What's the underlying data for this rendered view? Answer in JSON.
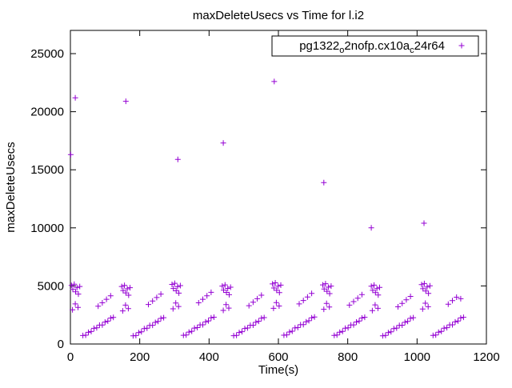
{
  "chart_data": {
    "type": "scatter",
    "title": "maxDeleteUsecs vs Time for l.i2",
    "xlabel": "Time(s)",
    "ylabel": "maxDeleteUsecs",
    "xlim": [
      0,
      1200
    ],
    "ylim": [
      0,
      27000
    ],
    "xticks": [
      0,
      200,
      400,
      600,
      800,
      1000,
      1200
    ],
    "yticks": [
      0,
      5000,
      10000,
      15000,
      20000,
      25000
    ],
    "grid": false,
    "marker": "plus",
    "marker_color": "#9400d3",
    "legend": {
      "label": "pg1322_o2nofp.cx10a_c24r64",
      "parts": [
        {
          "text": "pg1322"
        },
        {
          "text": "o",
          "sub": true
        },
        {
          "text": "2nofp.cx10a"
        },
        {
          "text": "c",
          "sub": true
        },
        {
          "text": "24r64"
        }
      ],
      "position": "top-right",
      "boxed": true
    },
    "series": [
      {
        "name": "pg1322_o2nofp.cx10a_c24r64",
        "points": [
          [
            1,
            16300
          ],
          [
            14,
            21200
          ],
          [
            160,
            20900
          ],
          [
            310,
            15900
          ],
          [
            441,
            17300
          ],
          [
            588,
            22600
          ],
          [
            731,
            13900
          ],
          [
            868,
            10000
          ],
          [
            1020,
            10400
          ],
          [
            3,
            5050
          ],
          [
            7,
            4700
          ],
          [
            11,
            5150
          ],
          [
            15,
            4500
          ],
          [
            19,
            4850
          ],
          [
            23,
            4300
          ],
          [
            27,
            4950
          ],
          [
            6,
            2950
          ],
          [
            14,
            3450
          ],
          [
            22,
            3150
          ],
          [
            36,
            730
          ],
          [
            44,
            758
          ],
          [
            52,
            1006
          ],
          [
            60,
            1074
          ],
          [
            68,
            1352
          ],
          [
            76,
            1390
          ],
          [
            84,
            1628
          ],
          [
            92,
            1636
          ],
          [
            100,
            1884
          ],
          [
            108,
            1972
          ],
          [
            116,
            2230
          ],
          [
            124,
            2288
          ],
          [
            80,
            3250
          ],
          [
            92,
            3550
          ],
          [
            104,
            3850
          ],
          [
            116,
            4150
          ],
          [
            148,
            4950
          ],
          [
            152,
            4600
          ],
          [
            156,
            5050
          ],
          [
            160,
            4400
          ],
          [
            164,
            4750
          ],
          [
            168,
            4200
          ],
          [
            172,
            4850
          ],
          [
            151,
            2850
          ],
          [
            159,
            3350
          ],
          [
            167,
            3050
          ],
          [
            181,
            705
          ],
          [
            189,
            733
          ],
          [
            197,
            981
          ],
          [
            205,
            1049
          ],
          [
            213,
            1327
          ],
          [
            221,
            1365
          ],
          [
            229,
            1603
          ],
          [
            237,
            1611
          ],
          [
            245,
            1859
          ],
          [
            253,
            1947
          ],
          [
            261,
            2205
          ],
          [
            269,
            2263
          ],
          [
            225,
            3400
          ],
          [
            237,
            3700
          ],
          [
            249,
            4000
          ],
          [
            261,
            4300
          ],
          [
            293,
            5130
          ],
          [
            297,
            4780
          ],
          [
            301,
            5230
          ],
          [
            305,
            4580
          ],
          [
            309,
            4930
          ],
          [
            313,
            4380
          ],
          [
            317,
            5030
          ],
          [
            296,
            3030
          ],
          [
            304,
            3530
          ],
          [
            312,
            3230
          ],
          [
            326,
            750
          ],
          [
            334,
            778
          ],
          [
            342,
            1026
          ],
          [
            350,
            1094
          ],
          [
            358,
            1372
          ],
          [
            366,
            1410
          ],
          [
            374,
            1648
          ],
          [
            382,
            1656
          ],
          [
            390,
            1904
          ],
          [
            398,
            1992
          ],
          [
            406,
            2250
          ],
          [
            414,
            2308
          ],
          [
            370,
            3550
          ],
          [
            382,
            3850
          ],
          [
            394,
            4150
          ],
          [
            406,
            4450
          ],
          [
            438,
            4990
          ],
          [
            442,
            4640
          ],
          [
            446,
            5090
          ],
          [
            450,
            4440
          ],
          [
            454,
            4790
          ],
          [
            458,
            4240
          ],
          [
            462,
            4890
          ],
          [
            441,
            2890
          ],
          [
            449,
            3390
          ],
          [
            457,
            3090
          ],
          [
            471,
            715
          ],
          [
            479,
            743
          ],
          [
            487,
            991
          ],
          [
            495,
            1059
          ],
          [
            503,
            1337
          ],
          [
            511,
            1375
          ],
          [
            519,
            1613
          ],
          [
            527,
            1621
          ],
          [
            535,
            1869
          ],
          [
            543,
            1957
          ],
          [
            551,
            2215
          ],
          [
            559,
            2273
          ],
          [
            515,
            3300
          ],
          [
            527,
            3600
          ],
          [
            539,
            3900
          ],
          [
            551,
            4200
          ],
          [
            583,
            5170
          ],
          [
            587,
            4820
          ],
          [
            591,
            5270
          ],
          [
            595,
            4620
          ],
          [
            599,
            4970
          ],
          [
            603,
            4420
          ],
          [
            607,
            5070
          ],
          [
            586,
            3070
          ],
          [
            594,
            3570
          ],
          [
            602,
            3270
          ],
          [
            616,
            760
          ],
          [
            624,
            788
          ],
          [
            632,
            1036
          ],
          [
            640,
            1104
          ],
          [
            648,
            1382
          ],
          [
            656,
            1420
          ],
          [
            664,
            1658
          ],
          [
            672,
            1666
          ],
          [
            680,
            1914
          ],
          [
            688,
            2002
          ],
          [
            696,
            2260
          ],
          [
            704,
            2318
          ],
          [
            660,
            3450
          ],
          [
            672,
            3750
          ],
          [
            684,
            4050
          ],
          [
            696,
            4350
          ],
          [
            728,
            5090
          ],
          [
            732,
            4740
          ],
          [
            736,
            5190
          ],
          [
            740,
            4540
          ],
          [
            744,
            4890
          ],
          [
            748,
            4340
          ],
          [
            752,
            4990
          ],
          [
            731,
            2990
          ],
          [
            739,
            3490
          ],
          [
            747,
            3190
          ],
          [
            761,
            740
          ],
          [
            769,
            768
          ],
          [
            777,
            1016
          ],
          [
            785,
            1084
          ],
          [
            793,
            1362
          ],
          [
            801,
            1400
          ],
          [
            809,
            1638
          ],
          [
            817,
            1646
          ],
          [
            825,
            1894
          ],
          [
            833,
            1982
          ],
          [
            841,
            2240
          ],
          [
            849,
            2298
          ],
          [
            805,
            3350
          ],
          [
            817,
            3650
          ],
          [
            829,
            3950
          ],
          [
            841,
            4250
          ],
          [
            868,
            4970
          ],
          [
            872,
            4620
          ],
          [
            876,
            5070
          ],
          [
            880,
            4420
          ],
          [
            884,
            4770
          ],
          [
            888,
            4220
          ],
          [
            892,
            4870
          ],
          [
            871,
            2870
          ],
          [
            879,
            3370
          ],
          [
            887,
            3070
          ],
          [
            901,
            710
          ],
          [
            909,
            738
          ],
          [
            917,
            986
          ],
          [
            925,
            1054
          ],
          [
            933,
            1332
          ],
          [
            941,
            1370
          ],
          [
            949,
            1608
          ],
          [
            957,
            1616
          ],
          [
            965,
            1864
          ],
          [
            973,
            1952
          ],
          [
            981,
            2210
          ],
          [
            989,
            2268
          ],
          [
            945,
            3200
          ],
          [
            957,
            3500
          ],
          [
            969,
            3800
          ],
          [
            981,
            4100
          ],
          [
            1013,
            5110
          ],
          [
            1017,
            4760
          ],
          [
            1021,
            5210
          ],
          [
            1025,
            4560
          ],
          [
            1029,
            4910
          ],
          [
            1033,
            4360
          ],
          [
            1037,
            5010
          ],
          [
            1016,
            3010
          ],
          [
            1024,
            3510
          ],
          [
            1032,
            3210
          ],
          [
            1046,
            745
          ],
          [
            1054,
            773
          ],
          [
            1062,
            1021
          ],
          [
            1070,
            1089
          ],
          [
            1078,
            1367
          ],
          [
            1086,
            1405
          ],
          [
            1094,
            1643
          ],
          [
            1102,
            1651
          ],
          [
            1110,
            1899
          ],
          [
            1118,
            1987
          ],
          [
            1126,
            2245
          ],
          [
            1134,
            2303
          ],
          [
            1090,
            3430
          ],
          [
            1102,
            3730
          ],
          [
            1114,
            4030
          ],
          [
            1126,
            3900
          ]
        ]
      }
    ]
  }
}
